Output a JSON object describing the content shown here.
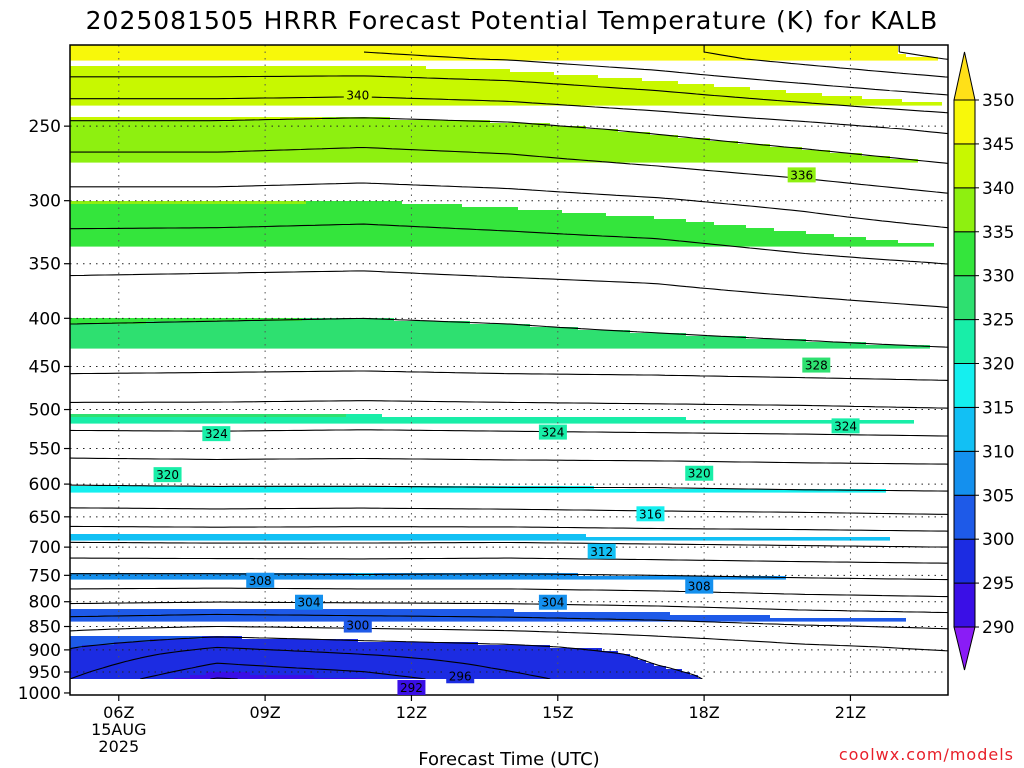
{
  "chart_data": {
    "type": "contour",
    "title": "2025081505 HRRR Forecast Potential Temperature (K) for KALB",
    "xlabel": "Forecast Time (UTC)",
    "ylabel": "",
    "credit": "coolwx.com/models",
    "x_ticks": [
      {
        "hour": 6,
        "lines": [
          "06Z",
          "15AUG",
          "2025"
        ]
      },
      {
        "hour": 9,
        "lines": [
          "09Z"
        ]
      },
      {
        "hour": 12,
        "lines": [
          "12Z"
        ]
      },
      {
        "hour": 15,
        "lines": [
          "15Z"
        ]
      },
      {
        "hour": 18,
        "lines": [
          "18Z"
        ]
      },
      {
        "hour": 21,
        "lines": [
          "21Z"
        ]
      }
    ],
    "xlim_hours": [
      5,
      23
    ],
    "y_axis": "pressure (hPa), reversed",
    "y_ticks": [
      250,
      300,
      350,
      400,
      450,
      500,
      550,
      600,
      650,
      700,
      750,
      800,
      850,
      900,
      950,
      1000
    ],
    "ylim_hpa": [
      205,
      1005
    ],
    "colorbar": {
      "levels": [
        290,
        295,
        300,
        305,
        310,
        315,
        320,
        325,
        330,
        335,
        340,
        345,
        350
      ],
      "labels": [
        "290",
        "295",
        "300",
        "305",
        "310",
        "315",
        "320",
        "325",
        "330",
        "335",
        "340",
        "345",
        "350"
      ],
      "colors": [
        "#8a1cf6",
        "#3a0fe6",
        "#1c2ce2",
        "#1e5ae8",
        "#1490ee",
        "#12c0f4",
        "#15efef",
        "#18eea8",
        "#2ee070",
        "#34e53c",
        "#8ef010",
        "#c8f800",
        "#f8f80a",
        "#ffe018"
      ]
    },
    "surface_color": "#a0522d",
    "theta_profiles": [
      {
        "hour": 5,
        "p": [
          210,
          250,
          300,
          350,
          400,
          450,
          500,
          550,
          600,
          650,
          700,
          750,
          800,
          850,
          900,
          950,
          1000
        ],
        "theta": [
          346,
          339.5,
          335.2,
          332.5,
          330.2,
          328.5,
          325.5,
          322.7,
          320.1,
          317.2,
          313.4,
          309.8,
          306.3,
          302.5,
          299.8,
          298.5,
          297
        ]
      },
      {
        "hour": 8,
        "p": [
          210,
          250,
          300,
          350,
          400,
          450,
          500,
          550,
          600,
          650,
          700,
          750,
          800,
          850,
          900,
          950,
          1000
        ],
        "theta": [
          346,
          339.5,
          335.2,
          332.4,
          330.1,
          328.4,
          325.5,
          322.8,
          320.2,
          317.3,
          313.5,
          309.8,
          306.1,
          302,
          297.5,
          295,
          291.5
        ]
      },
      {
        "hour": 11,
        "p": [
          210,
          250,
          300,
          350,
          400,
          450,
          500,
          550,
          600,
          650,
          700,
          750,
          800,
          850,
          900,
          950,
          1000
        ],
        "theta": [
          346,
          339.2,
          335,
          332.3,
          330,
          328.3,
          325.4,
          322.7,
          320.2,
          317.2,
          313.5,
          309.9,
          306.2,
          302.3,
          298.5,
          296,
          293
        ]
      },
      {
        "hour": 14,
        "p": [
          210,
          250,
          300,
          350,
          400,
          450,
          500,
          550,
          600,
          650,
          700,
          750,
          800,
          850,
          900,
          950,
          1000
        ],
        "theta": [
          346.5,
          339.6,
          335.3,
          332.6,
          330.2,
          328.5,
          325.5,
          322.8,
          320.3,
          317.3,
          313.4,
          309.8,
          306.3,
          302.6,
          299.2,
          298,
          296
        ]
      },
      {
        "hour": 17,
        "p": [
          210,
          250,
          300,
          350,
          400,
          450,
          500,
          550,
          600,
          650,
          700,
          750,
          800,
          850,
          900,
          950,
          1000
        ],
        "theta": [
          347.5,
          340.5,
          335.8,
          332.8,
          330.6,
          328.6,
          325.6,
          322.9,
          320.3,
          317.5,
          313.6,
          310,
          306.6,
          303.1,
          300.4,
          299.8,
          299.5
        ]
      },
      {
        "hour": 20,
        "p": [
          210,
          250,
          300,
          350,
          400,
          450,
          500,
          550,
          600,
          650,
          700,
          750,
          800,
          850,
          900,
          950,
          1000
        ],
        "theta": [
          349,
          341.5,
          336.5,
          333.5,
          331,
          328.8,
          325.7,
          323,
          320.5,
          317.6,
          313.8,
          310.3,
          307.1,
          303.8,
          301.4,
          300.7,
          300.5
        ]
      },
      {
        "hour": 23,
        "p": [
          210,
          250,
          300,
          350,
          400,
          450,
          500,
          550,
          600,
          650,
          700,
          750,
          800,
          850,
          900,
          950,
          1000
        ],
        "theta": [
          350.5,
          342.5,
          337.5,
          334,
          331.5,
          329,
          325.9,
          323.1,
          320.6,
          317.8,
          314,
          310.5,
          307.4,
          304.2,
          302,
          300.8,
          299.8
        ]
      }
    ],
    "contour_interval": 2,
    "contour_labels": [
      {
        "text": "340",
        "hour": 10.9,
        "p": 232
      },
      {
        "text": "336",
        "hour": 20,
        "p": 282
      },
      {
        "text": "328",
        "hour": 20.3,
        "p": 449
      },
      {
        "text": "324",
        "hour": 8,
        "p": 531
      },
      {
        "text": "324",
        "hour": 14.9,
        "p": 529
      },
      {
        "text": "324",
        "hour": 20.9,
        "p": 521
      },
      {
        "text": "320",
        "hour": 7.0,
        "p": 587
      },
      {
        "text": "320",
        "hour": 17.9,
        "p": 585
      },
      {
        "text": "316",
        "hour": 16.9,
        "p": 646
      },
      {
        "text": "312",
        "hour": 15.9,
        "p": 708
      },
      {
        "text": "308",
        "hour": 8.9,
        "p": 760
      },
      {
        "text": "308",
        "hour": 17.9,
        "p": 771
      },
      {
        "text": "304",
        "hour": 9.9,
        "p": 802
      },
      {
        "text": "304",
        "hour": 14.9,
        "p": 802
      },
      {
        "text": "300",
        "hour": 10.9,
        "p": 848
      },
      {
        "text": "296",
        "hour": 13.0,
        "p": 960
      },
      {
        "text": "292",
        "hour": 12.0,
        "p": 988
      }
    ]
  }
}
